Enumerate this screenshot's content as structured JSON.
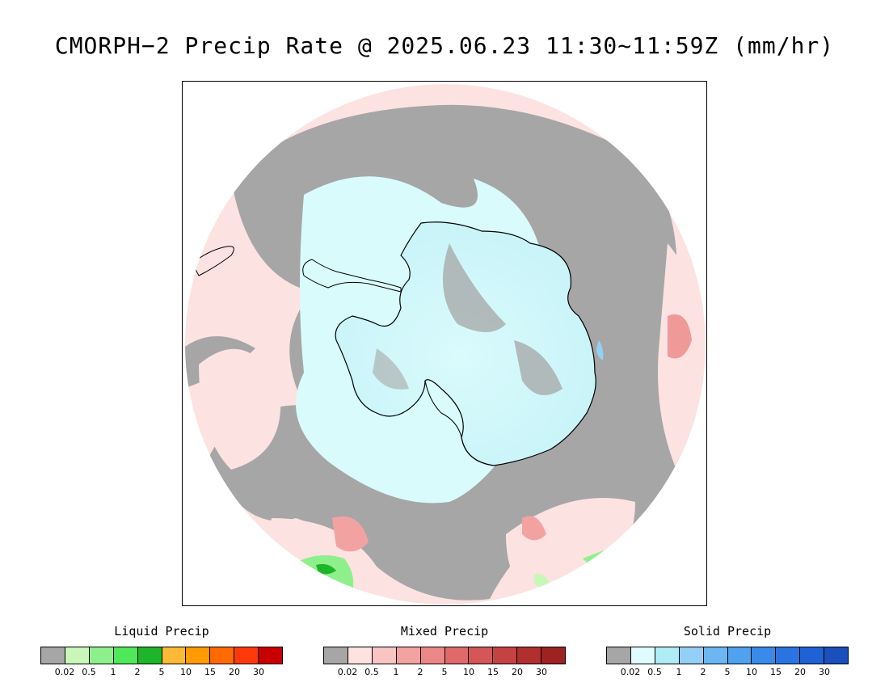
{
  "title": "CMORPH−2 Precip Rate @ 2025.06.23 11:30~11:59Z (mm/hr)",
  "legends": [
    {
      "title": "Liquid Precip",
      "colors": [
        "#a6a6a6",
        "#c8f7b8",
        "#8ef08a",
        "#4fe85a",
        "#1fb52a",
        "#ffb936",
        "#ff9a00",
        "#ff6a00",
        "#ff3a0a",
        "#c80000"
      ],
      "ticks": [
        "0.02",
        "0.5",
        "1",
        "2",
        "5",
        "10",
        "15",
        "20",
        "30"
      ]
    },
    {
      "title": "Mixed Precip",
      "colors": [
        "#a6a6a6",
        "#fde2e2",
        "#f9c4c4",
        "#f3a2a2",
        "#ec8787",
        "#e06a6a",
        "#d45656",
        "#c54242",
        "#b22f2f",
        "#9e2222"
      ],
      "ticks": [
        "0.02",
        "0.5",
        "1",
        "2",
        "5",
        "10",
        "15",
        "20",
        "30"
      ]
    },
    {
      "title": "Solid Precip",
      "colors": [
        "#a6a6a6",
        "#e0fbfd",
        "#b0ecf6",
        "#94d0f5",
        "#6cb6f2",
        "#4ea2ee",
        "#3a8ae9",
        "#2a74e2",
        "#1f62d6",
        "#1a4fbd"
      ],
      "ticks": [
        "0.02",
        "0.5",
        "1",
        "2",
        "5",
        "10",
        "15",
        "20",
        "30"
      ]
    }
  ]
}
